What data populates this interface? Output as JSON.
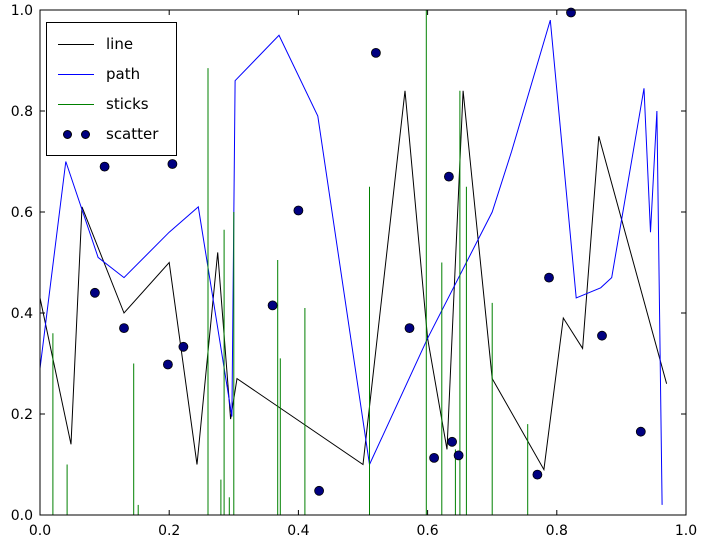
{
  "figure": {
    "background": "#ffffff",
    "frame_color": "#000000"
  },
  "chart_data": {
    "type": "line",
    "title": "",
    "xlabel": "",
    "ylabel": "",
    "xlim": [
      0.0,
      1.0
    ],
    "ylim": [
      0.0,
      1.0
    ],
    "grid": false,
    "xticks": [
      0.0,
      0.2,
      0.4,
      0.6,
      0.8,
      1.0
    ],
    "yticks": [
      0.0,
      0.2,
      0.4,
      0.6,
      0.8,
      1.0
    ],
    "xtick_labels": [
      "0.0",
      "0.2",
      "0.4",
      "0.6",
      "0.8",
      "1.0"
    ],
    "ytick_labels": [
      "0.0",
      "0.2",
      "0.4",
      "0.6",
      "0.8",
      "1.0"
    ],
    "legend": {
      "position": "upper left",
      "entries": [
        "line",
        "path",
        "sticks",
        "scatter"
      ]
    },
    "series": [
      {
        "name": "line",
        "type": "line",
        "color": "#000000",
        "points": [
          [
            0.0,
            0.43
          ],
          [
            0.048,
            0.14
          ],
          [
            0.065,
            0.61
          ],
          [
            0.13,
            0.4
          ],
          [
            0.2,
            0.5
          ],
          [
            0.243,
            0.1
          ],
          [
            0.275,
            0.52
          ],
          [
            0.295,
            0.19
          ],
          [
            0.305,
            0.27
          ],
          [
            0.5,
            0.1
          ],
          [
            0.565,
            0.84
          ],
          [
            0.6,
            0.35
          ],
          [
            0.63,
            0.13
          ],
          [
            0.655,
            0.84
          ],
          [
            0.7,
            0.27
          ],
          [
            0.78,
            0.09
          ],
          [
            0.81,
            0.39
          ],
          [
            0.84,
            0.33
          ],
          [
            0.865,
            0.75
          ],
          [
            0.97,
            0.26
          ]
        ]
      },
      {
        "name": "path",
        "type": "line",
        "color": "#0000ff",
        "points": [
          [
            0.0,
            0.29
          ],
          [
            0.04,
            0.7
          ],
          [
            0.09,
            0.51
          ],
          [
            0.13,
            0.47
          ],
          [
            0.2,
            0.56
          ],
          [
            0.245,
            0.61
          ],
          [
            0.297,
            0.195
          ],
          [
            0.302,
            0.86
          ],
          [
            0.37,
            0.95
          ],
          [
            0.43,
            0.79
          ],
          [
            0.51,
            0.1
          ],
          [
            0.6,
            0.35
          ],
          [
            0.7,
            0.6
          ],
          [
            0.73,
            0.72
          ],
          [
            0.79,
            0.98
          ],
          [
            0.83,
            0.43
          ],
          [
            0.868,
            0.45
          ],
          [
            0.885,
            0.47
          ],
          [
            0.935,
            0.845
          ],
          [
            0.945,
            0.56
          ],
          [
            0.955,
            0.8
          ],
          [
            0.963,
            0.02
          ]
        ]
      },
      {
        "name": "sticks",
        "type": "sticks",
        "color": "#008000",
        "points": [
          [
            0.02,
            0.36
          ],
          [
            0.042,
            0.1
          ],
          [
            0.145,
            0.3
          ],
          [
            0.152,
            0.02
          ],
          [
            0.26,
            0.885
          ],
          [
            0.28,
            0.07
          ],
          [
            0.285,
            0.565
          ],
          [
            0.293,
            0.035
          ],
          [
            0.3,
            0.6
          ],
          [
            0.368,
            0.505
          ],
          [
            0.372,
            0.31
          ],
          [
            0.41,
            0.41
          ],
          [
            0.51,
            0.65
          ],
          [
            0.598,
            1.0
          ],
          [
            0.622,
            0.5
          ],
          [
            0.643,
            0.13
          ],
          [
            0.65,
            0.84
          ],
          [
            0.66,
            0.65
          ],
          [
            0.7,
            0.42
          ],
          [
            0.755,
            0.18
          ]
        ]
      },
      {
        "name": "scatter",
        "type": "scatter",
        "color": "#000080",
        "edge_color": "#000000",
        "points": [
          [
            0.085,
            0.44
          ],
          [
            0.1,
            0.69
          ],
          [
            0.13,
            0.37
          ],
          [
            0.198,
            0.298
          ],
          [
            0.205,
            0.695
          ],
          [
            0.222,
            0.333
          ],
          [
            0.36,
            0.415
          ],
          [
            0.4,
            0.603
          ],
          [
            0.432,
            0.048
          ],
          [
            0.52,
            0.915
          ],
          [
            0.572,
            0.37
          ],
          [
            0.61,
            0.113
          ],
          [
            0.633,
            0.67
          ],
          [
            0.638,
            0.145
          ],
          [
            0.648,
            0.118
          ],
          [
            0.77,
            0.08
          ],
          [
            0.788,
            0.47
          ],
          [
            0.822,
            0.995
          ],
          [
            0.87,
            0.355
          ],
          [
            0.93,
            0.165
          ]
        ]
      }
    ]
  }
}
